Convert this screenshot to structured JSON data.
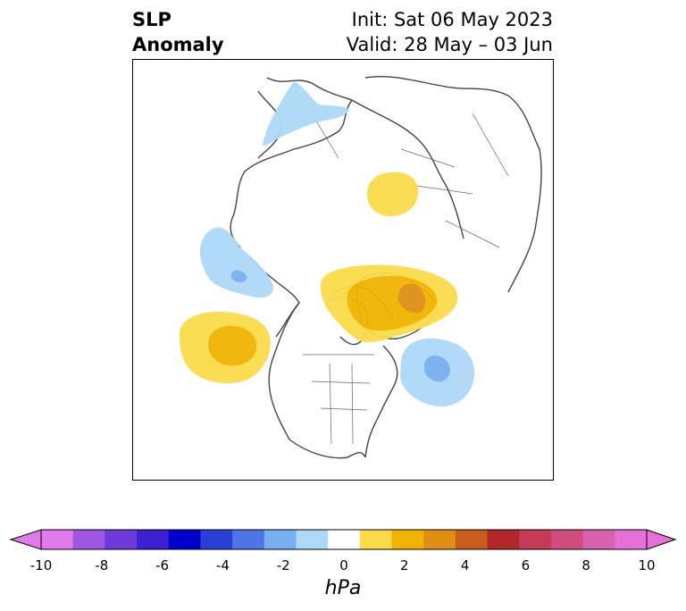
{
  "title": {
    "left_line1": "SLP",
    "left_line2": "Anomaly",
    "right_line1": "Init: Sat 06 May 2023",
    "right_line2": "Valid: 28 May – 03 Jun"
  },
  "colorbar": {
    "unit": "hPa",
    "ticks": [
      "-10",
      "-8",
      "-6",
      "-4",
      "-2",
      "0",
      "2",
      "4",
      "6",
      "8",
      "10"
    ],
    "levels": [
      -10,
      -9,
      -8,
      -7,
      -6,
      -5,
      -4,
      -3,
      -2,
      -1,
      1,
      2,
      3,
      4,
      5,
      6,
      7,
      8,
      9,
      10
    ],
    "colors": [
      "#e07ae8",
      "#9c56e2",
      "#6d3ad9",
      "#3d1fd4",
      "#0000cc",
      "#2a3fd8",
      "#4f74e6",
      "#78aff0",
      "#acd9f7",
      "#ffffff",
      "#fadc4a",
      "#f0b400",
      "#df8e12",
      "#c85c1a",
      "#b22828",
      "#c53a55",
      "#cf4d7a",
      "#d962ad",
      "#e470d8"
    ],
    "under_color": "#e07ae8",
    "over_color": "#e470d8"
  },
  "map": {
    "projection": "north-polar-stereographic",
    "field": "sea level pressure anomaly",
    "anomaly_features": [
      {
        "region": "Northern Europe / Scandinavia",
        "sign": "negative",
        "peak_hpa": -1.5
      },
      {
        "region": "Western Siberia",
        "sign": "positive",
        "peak_hpa": 1.5
      },
      {
        "region": "Gulf of Alaska / Bering",
        "sign": "negative",
        "peak_hpa": -2.5
      },
      {
        "region": "Greenland / Baffin Bay",
        "sign": "positive",
        "peak_hpa": 4.5
      },
      {
        "region": "North Pacific",
        "sign": "positive",
        "peak_hpa": 2.5
      },
      {
        "region": "Northwest Atlantic",
        "sign": "negative",
        "peak_hpa": -2.5
      }
    ]
  }
}
